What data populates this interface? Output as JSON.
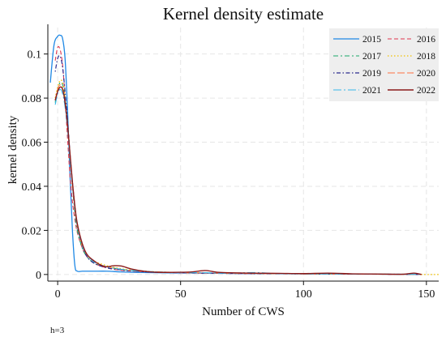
{
  "chart_data": {
    "type": "line",
    "title": "Kernel density estimate",
    "xlabel": "Number of CWS",
    "ylabel": "kernel density",
    "note": "h=3",
    "xlim": [
      -4,
      155
    ],
    "ylim": [
      -0.003,
      0.112
    ],
    "xticks": [
      0,
      50,
      100,
      150
    ],
    "yticks": [
      0,
      0.02,
      0.04,
      0.06,
      0.08,
      0.1
    ],
    "xtick_labels": [
      "0",
      "50",
      "100",
      "150"
    ],
    "ytick_labels": [
      "0",
      "0.02",
      "0.04",
      "0.06",
      "0.08",
      "0.1"
    ],
    "grid": true,
    "legend_position": "top-right",
    "series": [
      {
        "name": "2015",
        "color": "#1e88e5",
        "dash": "",
        "width": 1.3,
        "x": [
          -3,
          -1.5,
          0,
          1,
          2,
          3,
          4,
          5,
          6,
          7,
          8,
          10,
          12,
          15,
          20,
          25,
          30,
          40,
          50,
          60,
          80,
          100,
          120,
          140,
          147
        ],
        "y": [
          0.087,
          0.104,
          0.108,
          0.1085,
          0.107,
          0.098,
          0.075,
          0.045,
          0.02,
          0.004,
          0.0015,
          0.0015,
          0.0015,
          0.0015,
          0.0015,
          0.0012,
          0.001,
          0.0008,
          0.0007,
          0.0006,
          0.0004,
          0.0003,
          0.0002,
          0.0001,
          0.0
        ]
      },
      {
        "name": "2016",
        "color": "#e0364e",
        "dash": "5,3",
        "width": 1.1,
        "x": [
          -1,
          0,
          1,
          2,
          3,
          4,
          5,
          6,
          7,
          8,
          10,
          12,
          15,
          20,
          25,
          30,
          40,
          50,
          60,
          80,
          100,
          120,
          140,
          148
        ],
        "y": [
          0.097,
          0.103,
          0.102,
          0.095,
          0.08,
          0.062,
          0.045,
          0.033,
          0.025,
          0.019,
          0.012,
          0.008,
          0.005,
          0.003,
          0.002,
          0.0015,
          0.001,
          0.0008,
          0.0006,
          0.0004,
          0.0003,
          0.0002,
          0.0001,
          0.0
        ]
      },
      {
        "name": "2017",
        "color": "#1aa86b",
        "dash": "6,3,2,3",
        "width": 1.1,
        "x": [
          -1,
          0,
          1,
          2,
          3,
          4,
          5,
          6,
          7,
          8,
          10,
          12,
          15,
          20,
          25,
          30,
          40,
          50,
          60,
          80,
          100,
          120,
          140,
          148
        ],
        "y": [
          0.078,
          0.084,
          0.087,
          0.086,
          0.08,
          0.07,
          0.055,
          0.04,
          0.028,
          0.02,
          0.012,
          0.008,
          0.005,
          0.0035,
          0.0025,
          0.0018,
          0.0012,
          0.0009,
          0.0007,
          0.0005,
          0.0003,
          0.0002,
          0.0001,
          0.0
        ]
      },
      {
        "name": "2018",
        "color": "#f2c200",
        "dash": "1.5,2.5",
        "width": 1.3,
        "x": [
          -1,
          0,
          1,
          2,
          3,
          4,
          5,
          6,
          7,
          8,
          10,
          12,
          15,
          20,
          25,
          30,
          40,
          50,
          60,
          80,
          100,
          120,
          140,
          150,
          155
        ],
        "y": [
          0.08,
          0.085,
          0.088,
          0.087,
          0.08,
          0.068,
          0.053,
          0.04,
          0.03,
          0.022,
          0.013,
          0.009,
          0.006,
          0.004,
          0.0028,
          0.002,
          0.0012,
          0.0009,
          0.0007,
          0.0005,
          0.0003,
          0.0002,
          0.0001,
          0.0,
          0.0
        ]
      },
      {
        "name": "2019",
        "color": "#2b2b8f",
        "dash": "1.5,2.5,5,2.5",
        "width": 1.2,
        "x": [
          -1,
          0,
          1,
          2,
          3,
          4,
          5,
          6,
          7,
          8,
          10,
          12,
          15,
          20,
          25,
          30,
          40,
          50,
          60,
          80,
          100,
          120,
          140,
          148
        ],
        "y": [
          0.092,
          0.098,
          0.099,
          0.094,
          0.083,
          0.07,
          0.055,
          0.042,
          0.031,
          0.022,
          0.013,
          0.008,
          0.005,
          0.003,
          0.0022,
          0.0016,
          0.001,
          0.0008,
          0.0006,
          0.0004,
          0.0003,
          0.0002,
          0.0001,
          0.0
        ]
      },
      {
        "name": "2020",
        "color": "#ff7043",
        "dash": "9,3",
        "width": 1.1,
        "x": [
          -1,
          0,
          1,
          2,
          3,
          4,
          5,
          6,
          7,
          8,
          10,
          12,
          15,
          20,
          25,
          30,
          40,
          50,
          60,
          80,
          100,
          120,
          140,
          148
        ],
        "y": [
          0.079,
          0.084,
          0.086,
          0.084,
          0.078,
          0.067,
          0.053,
          0.04,
          0.03,
          0.022,
          0.013,
          0.009,
          0.0055,
          0.0035,
          0.0025,
          0.0018,
          0.0012,
          0.0009,
          0.0007,
          0.0005,
          0.0003,
          0.0002,
          0.0001,
          0.0
        ]
      },
      {
        "name": "2021",
        "color": "#36b6ea",
        "dash": "10,3,2,3",
        "width": 1.1,
        "x": [
          -1,
          0,
          1,
          2,
          3,
          4,
          5,
          6,
          7,
          8,
          10,
          12,
          15,
          20,
          25,
          30,
          40,
          50,
          60,
          70,
          80,
          90,
          100,
          120,
          140,
          148
        ],
        "y": [
          0.077,
          0.082,
          0.084,
          0.082,
          0.076,
          0.066,
          0.052,
          0.04,
          0.03,
          0.022,
          0.013,
          0.009,
          0.0055,
          0.0035,
          0.0025,
          0.0018,
          0.0012,
          0.0009,
          0.0008,
          0.0006,
          0.0009,
          0.0004,
          0.0003,
          0.0002,
          0.0001,
          0.0
        ]
      },
      {
        "name": "2022",
        "color": "#8b1a1a",
        "dash": "",
        "width": 1.4,
        "x": [
          -1,
          0,
          1,
          2,
          3,
          4,
          5,
          6,
          7,
          8,
          10,
          12,
          15,
          18,
          20,
          23,
          26,
          30,
          35,
          40,
          50,
          55,
          60,
          65,
          70,
          80,
          90,
          100,
          110,
          120,
          130,
          140,
          145,
          148
        ],
        "y": [
          0.079,
          0.083,
          0.085,
          0.084,
          0.078,
          0.068,
          0.055,
          0.042,
          0.031,
          0.023,
          0.014,
          0.009,
          0.006,
          0.004,
          0.0035,
          0.004,
          0.0038,
          0.0025,
          0.0015,
          0.001,
          0.001,
          0.0012,
          0.0018,
          0.001,
          0.0008,
          0.0006,
          0.0005,
          0.0004,
          0.0006,
          0.0003,
          0.0002,
          0.0001,
          0.0006,
          0.0
        ]
      }
    ]
  }
}
